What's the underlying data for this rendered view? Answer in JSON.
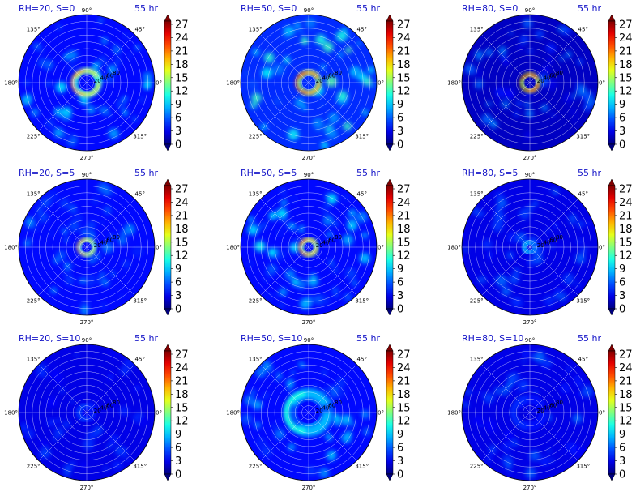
{
  "chart_data": {
    "type": "heatmap",
    "projection": "polar",
    "colormap": "jet",
    "layout": "3 rows x 3 columns",
    "colorbar": {
      "ticks": [
        "0",
        "3",
        "6",
        "9",
        "12",
        "15",
        "18",
        "21",
        "24",
        "27"
      ],
      "min": 0,
      "max": 30,
      "extend": "both"
    },
    "angular_ticks": [
      "0°",
      "45°",
      "90°",
      "135°",
      "180°",
      "225°",
      "270°",
      "315°"
    ],
    "radial_ticks": [
      "20",
      "40",
      "60",
      "80",
      "100",
      "120",
      "140",
      "160",
      "180",
      "200"
    ],
    "radial_max": 200,
    "grid": true,
    "panels": [
      {
        "title": "RH=20, S=0",
        "time": "55 hr",
        "rh": 20,
        "s": 0,
        "ring_peak": 22,
        "ring_radius": 35,
        "ring_width": 12,
        "diffuse": 9,
        "background": 4
      },
      {
        "title": "RH=50, S=0",
        "time": "55 hr",
        "rh": 50,
        "s": 0,
        "ring_peak": 27,
        "ring_radius": 30,
        "ring_width": 11,
        "diffuse": 12,
        "background": 5
      },
      {
        "title": "RH=80, S=0",
        "time": "55 hr",
        "rh": 80,
        "s": 0,
        "ring_peak": 30,
        "ring_radius": 24,
        "ring_width": 9,
        "diffuse": 6,
        "background": 2
      },
      {
        "title": "RH=20, S=5",
        "time": "55 hr",
        "rh": 20,
        "s": 5,
        "ring_peak": 22,
        "ring_radius": 22,
        "ring_width": 9,
        "diffuse": 7,
        "background": 4
      },
      {
        "title": "RH=50, S=5",
        "time": "55 hr",
        "rh": 50,
        "s": 5,
        "ring_peak": 25,
        "ring_radius": 22,
        "ring_width": 10,
        "diffuse": 10,
        "background": 4
      },
      {
        "title": "RH=80, S=5",
        "time": "55 hr",
        "rh": 80,
        "s": 5,
        "ring_peak": 10,
        "ring_radius": 15,
        "ring_width": 12,
        "diffuse": 5,
        "background": 3
      },
      {
        "title": "RH=20, S=10",
        "time": "55 hr",
        "rh": 20,
        "s": 10,
        "ring_peak": 6,
        "ring_radius": 20,
        "ring_width": 14,
        "diffuse": 4,
        "background": 3
      },
      {
        "title": "RH=50, S=10",
        "time": "55 hr",
        "rh": 50,
        "s": 10,
        "ring_peak": 12,
        "ring_radius": 55,
        "ring_width": 25,
        "diffuse": 9,
        "background": 4
      },
      {
        "title": "RH=80, S=10",
        "time": "55 hr",
        "rh": 80,
        "s": 10,
        "ring_peak": 5,
        "ring_radius": 40,
        "ring_width": 30,
        "diffuse": 5,
        "background": 3
      }
    ]
  }
}
